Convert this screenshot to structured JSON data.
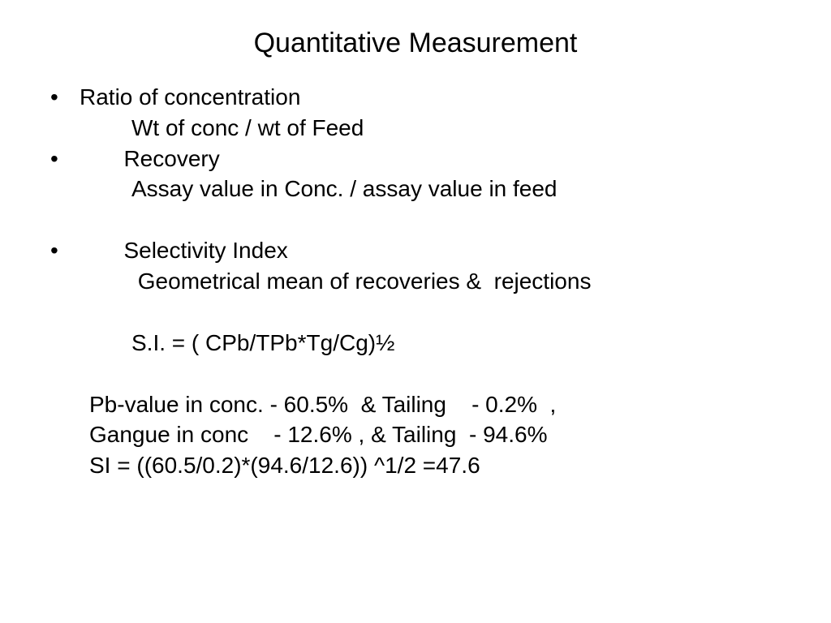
{
  "title": "Quantitative Measurement",
  "style": {
    "background_color": "#ffffff",
    "text_color": "#000000",
    "title_fontsize": 34,
    "body_fontsize": 28,
    "font_family": "Arial"
  },
  "lines": {
    "l1": "Ratio of concentration",
    "l2": "Wt of conc / wt of Feed",
    "l3": "       Recovery",
    "l4": "Assay value in Conc. / assay value in feed",
    "l5": "       Selectivity Index",
    "l6": " Geometrical mean of recoveries &  rejections",
    "l7": "S.I. = ( CPb/TPb*Tg/Cg)½",
    "l8": "Pb-value in conc. - 60.5%  & Tailing    - 0.2%  ,",
    "l9": "Gangue in conc    - 12.6% , & Tailing  - 94.6%",
    "l10": "SI = ((60.5/0.2)*(94.6/12.6)) ^1/2 =47.6"
  },
  "data": {
    "ratio_of_concentration": "Wt of conc / wt of Feed",
    "recovery": "Assay value in Conc. / assay value in feed",
    "selectivity_index_def": "Geometrical mean of recoveries & rejections",
    "selectivity_index_formula": "S.I. = ( CPb/TPb*Tg/Cg)½",
    "pb_value_conc_pct": 60.5,
    "pb_value_tailing_pct": 0.2,
    "gangue_conc_pct": 12.6,
    "gangue_tailing_pct": 94.6,
    "si_result": 47.6
  }
}
